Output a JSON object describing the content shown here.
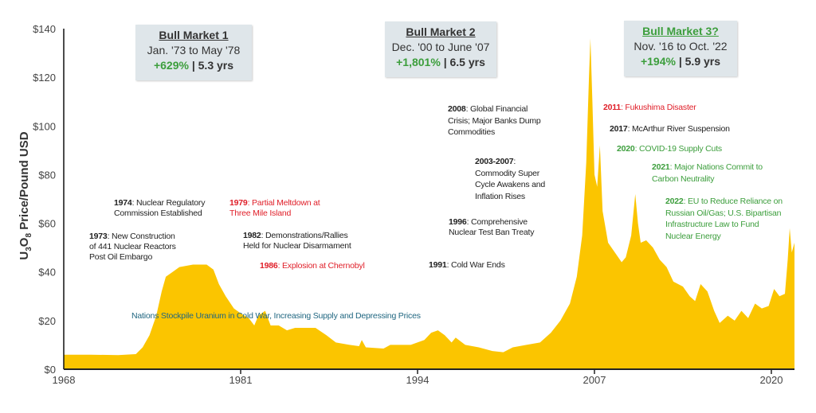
{
  "chart_data": {
    "type": "area",
    "title": "",
    "ylabel": "U3O8 Price/Pound USD",
    "ylabel_parts": {
      "u": "U",
      "sub1": "3",
      "o": "O",
      "sub2": "8",
      "rest": " Price/Pound USD"
    },
    "xlabel": "",
    "xlim": [
      1968,
      2021.7
    ],
    "ylim": [
      0,
      140
    ],
    "x_ticks": [
      1968,
      1981,
      1994,
      2007,
      2020
    ],
    "x_tick_labels": [
      "1968",
      "1981",
      "1994",
      "2007",
      "2020"
    ],
    "y_ticks": [
      0,
      20,
      40,
      60,
      80,
      100,
      120,
      140
    ],
    "y_tick_labels": [
      "$0",
      "$20",
      "$40",
      "$60",
      "$80",
      "$100",
      "$120",
      "$140"
    ],
    "fill_color": "#fbc500",
    "series": [
      {
        "name": "Uranium price",
        "points": [
          [
            1968,
            6
          ],
          [
            1970,
            6
          ],
          [
            1972,
            5.8
          ],
          [
            1973.3,
            6.2
          ],
          [
            1973.8,
            9
          ],
          [
            1974.3,
            14
          ],
          [
            1974.8,
            22
          ],
          [
            1975.2,
            32
          ],
          [
            1975.5,
            38
          ],
          [
            1976,
            40
          ],
          [
            1976.5,
            42
          ],
          [
            1977.5,
            43
          ],
          [
            1978.5,
            43
          ],
          [
            1979,
            41
          ],
          [
            1979.4,
            35
          ],
          [
            1979.9,
            30
          ],
          [
            1980.5,
            25
          ],
          [
            1981,
            23
          ],
          [
            1981.6,
            21
          ],
          [
            1982,
            18
          ],
          [
            1982.3,
            22
          ],
          [
            1982.8,
            24
          ],
          [
            1983.2,
            18
          ],
          [
            1983.8,
            18
          ],
          [
            1984.4,
            16
          ],
          [
            1985,
            17
          ],
          [
            1986.5,
            17
          ],
          [
            1987.3,
            14
          ],
          [
            1988,
            11
          ],
          [
            1989,
            10
          ],
          [
            1989.7,
            9.5
          ],
          [
            1989.9,
            12
          ],
          [
            1990.2,
            9
          ],
          [
            1991.5,
            8.5
          ],
          [
            1992,
            10
          ],
          [
            1993.5,
            10
          ],
          [
            1994.5,
            12
          ],
          [
            1995,
            15
          ],
          [
            1995.5,
            16
          ],
          [
            1996,
            14
          ],
          [
            1996.5,
            11
          ],
          [
            1996.8,
            13
          ],
          [
            1997.5,
            10
          ],
          [
            1998.5,
            9
          ],
          [
            1999.5,
            7.5
          ],
          [
            2000.3,
            7
          ],
          [
            2001,
            9
          ],
          [
            2002,
            10
          ],
          [
            2003,
            11
          ],
          [
            2003.8,
            15
          ],
          [
            2004.5,
            20
          ],
          [
            2005.2,
            27
          ],
          [
            2005.7,
            38
          ],
          [
            2006.1,
            55
          ],
          [
            2006.4,
            85
          ],
          [
            2006.6,
            120
          ],
          [
            2006.7,
            136
          ],
          [
            2006.85,
            110
          ],
          [
            2007,
            80
          ],
          [
            2007.2,
            75
          ],
          [
            2007.4,
            92
          ],
          [
            2007.6,
            65
          ],
          [
            2008,
            52
          ],
          [
            2008.5,
            48
          ],
          [
            2009,
            44
          ],
          [
            2009.3,
            46
          ],
          [
            2009.7,
            55
          ],
          [
            2010,
            72
          ],
          [
            2010.2,
            60
          ],
          [
            2010.4,
            52
          ],
          [
            2010.8,
            53
          ],
          [
            2011.3,
            50
          ],
          [
            2011.8,
            45
          ],
          [
            2012.3,
            42
          ],
          [
            2012.8,
            36
          ],
          [
            2013.5,
            34
          ],
          [
            2014,
            30
          ],
          [
            2014.4,
            28
          ],
          [
            2014.8,
            35
          ],
          [
            2015.3,
            32
          ],
          [
            2015.8,
            24
          ],
          [
            2016.2,
            19
          ],
          [
            2016.8,
            22
          ],
          [
            2017.3,
            20
          ],
          [
            2017.8,
            24
          ],
          [
            2018.3,
            21
          ],
          [
            2018.8,
            27
          ],
          [
            2019.3,
            25
          ],
          [
            2019.8,
            26
          ],
          [
            2020.2,
            33
          ],
          [
            2020.6,
            30
          ],
          [
            2021,
            31
          ],
          [
            2021.2,
            45
          ],
          [
            2021.35,
            58
          ],
          [
            2021.5,
            48
          ],
          [
            2021.7,
            52
          ]
        ]
      }
    ],
    "bull_markets": [
      {
        "title": "Bull Market 1",
        "range": "Jan. '73 to May '78",
        "gain": "+629%",
        "duration": "| 5.3 yrs"
      },
      {
        "title": "Bull Market 2",
        "range": "Dec. '00 to June '07",
        "gain": "+1,801%",
        "duration": "| 6.5 yrs"
      },
      {
        "title": "Bull Market 3?",
        "range": "Nov. '16 to Oct. '22",
        "gain": "+194%",
        "duration": "| 5.9 yrs"
      }
    ],
    "annotations": [
      {
        "year": "1974",
        "text": ": Nuclear Regulatory Commission Established",
        "color": "#222222"
      },
      {
        "year": "1973",
        "text": ": New Construction of 441 Nuclear Reactors Post Oil Embargo",
        "color": "#222222"
      },
      {
        "year": "1979",
        "text": ": Partial Meltdown at Three Mile Island",
        "color": "#e0202a"
      },
      {
        "year": "1982",
        "text": ": Demonstrations/Rallies Held for Nuclear Disarmament",
        "color": "#222222"
      },
      {
        "year": "1986",
        "text": ": Explosion at Chernobyl",
        "color": "#e0202a"
      },
      {
        "year": "1991",
        "text": ": Cold War Ends",
        "color": "#222222"
      },
      {
        "year": "1996",
        "text": ": Comprehensive Nuclear Test Ban Treaty",
        "color": "#222222"
      },
      {
        "year": "2003-2007",
        "text": ": Commodity Super Cycle Awakens and Inflation Rises",
        "color": "#222222"
      },
      {
        "year": "2008",
        "text": ": Global Financial Crisis; Major Banks Dump Commodities",
        "color": "#222222"
      },
      {
        "year": "2011",
        "text": ": Fukushima Disaster",
        "color": "#e0202a"
      },
      {
        "year": "2017",
        "text": ": McArthur River Suspension",
        "color": "#222222"
      },
      {
        "year": "2020",
        "text": ": COVID-19 Supply Cuts",
        "color": "#3c9e3c"
      },
      {
        "year": "2021",
        "text": ": Major Nations Commit to Carbon Neutrality",
        "color": "#3c9e3c"
      },
      {
        "year": "2022",
        "text": ": EU to Reduce Reliance on Russian Oil/Gas; U.S. Bipartisan Infrastructure Law to Fund Nuclear Energy",
        "color": "#3c9e3c"
      }
    ],
    "band_note": "Nations Stockpile Uranium in Cold War, Increasing Supply and Depressing Prices"
  }
}
